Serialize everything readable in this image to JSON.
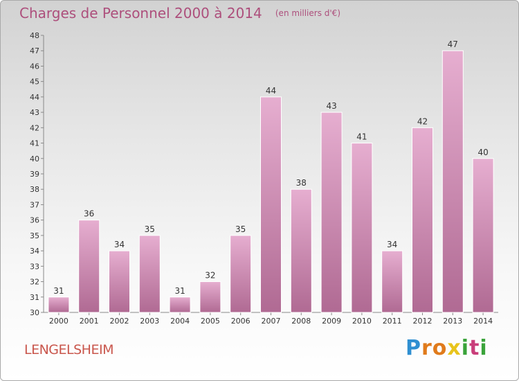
{
  "header": {
    "title": "Charges de Personnel 2000 à 2014",
    "subtitle": "(en milliers d'€)"
  },
  "commune": "LENGELSHEIM",
  "brand": {
    "letters": [
      "P",
      "r",
      "o",
      "x",
      "i",
      "t",
      "i"
    ],
    "colors": [
      "#2f8fd1",
      "#e07b1c",
      "#e07b1c",
      "#e8c41c",
      "#3aa33a",
      "#c93e7a",
      "#3aa33a"
    ]
  },
  "colors": {
    "bar_top": "#e6aed0",
    "bar_bottom": "#b06a93",
    "title": "#ad4f7c",
    "commune": "#c9564c"
  },
  "chart_data": {
    "type": "bar",
    "categories": [
      "2000",
      "2001",
      "2002",
      "2003",
      "2004",
      "2005",
      "2006",
      "2007",
      "2008",
      "2009",
      "2010",
      "2011",
      "2012",
      "2013",
      "2014"
    ],
    "values": [
      31,
      36,
      34,
      35,
      31,
      32,
      35,
      44,
      38,
      43,
      41,
      34,
      42,
      47,
      40
    ],
    "title": "Charges de Personnel 2000 à 2014",
    "subtitle": "(en milliers d'€)",
    "ylim": [
      30,
      48
    ],
    "yticks": [
      30,
      31,
      32,
      33,
      34,
      35,
      36,
      37,
      38,
      39,
      40,
      41,
      42,
      43,
      44,
      45,
      46,
      47,
      48
    ],
    "grid": "none",
    "data_labels": true
  }
}
